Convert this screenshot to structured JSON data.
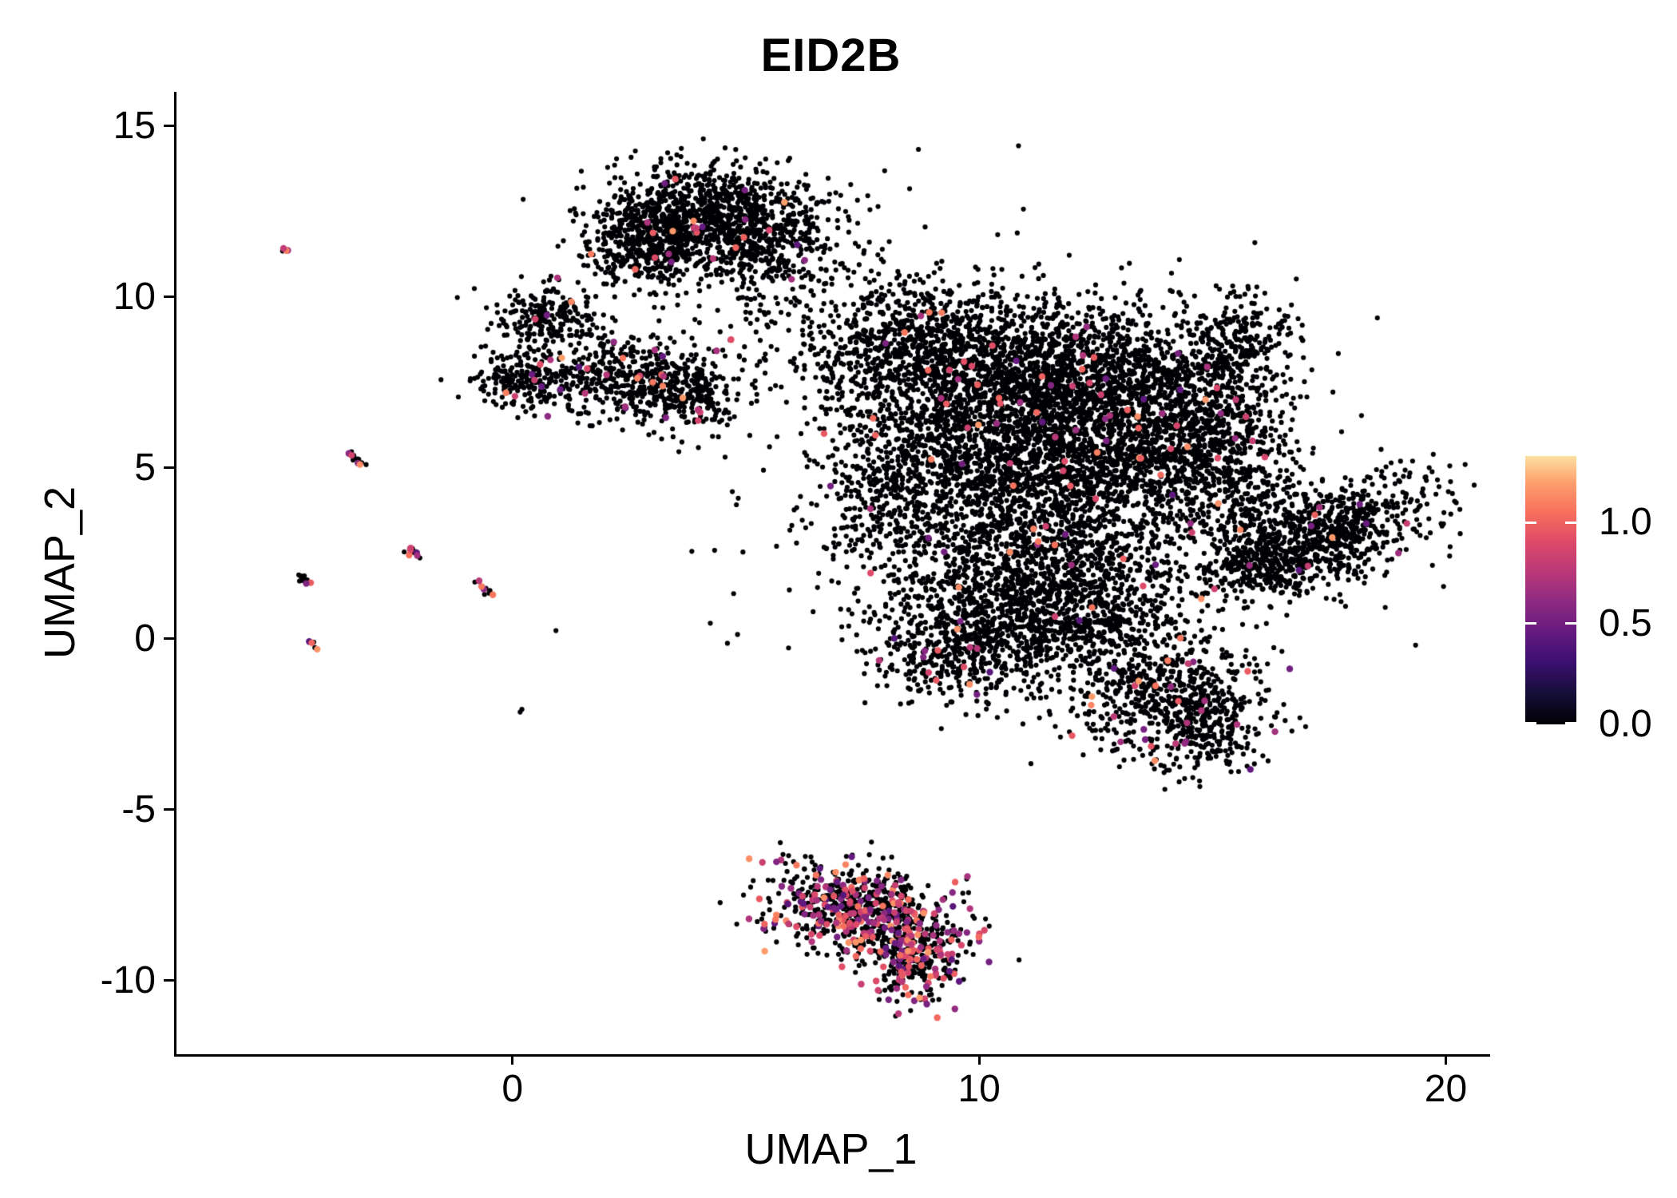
{
  "title": "EID2B",
  "axes": {
    "x_label": "UMAP_1",
    "y_label": "UMAP_2"
  },
  "legend": {
    "entries": [
      {
        "text": "1.0",
        "value": 1.0
      },
      {
        "text": "0.5",
        "value": 0.5
      },
      {
        "text": "0.0",
        "value": 0.0
      }
    ],
    "value_range": [
      0,
      1.33
    ]
  },
  "chart_data": {
    "type": "scatter",
    "title": "EID2B",
    "xlabel": "UMAP_1",
    "ylabel": "UMAP_2",
    "xlim": [
      -7.2,
      20.95
    ],
    "ylim": [
      -12.15,
      16.0
    ],
    "x_ticks": [
      0,
      10,
      20
    ],
    "y_ticks": [
      -10,
      -5,
      0,
      5,
      10,
      15
    ],
    "grid": false,
    "legend_position": "right",
    "colormap": "magma",
    "point_color_zero": "#000004",
    "colormap_stops": [
      [
        0.0,
        "#000004"
      ],
      [
        0.11,
        "#140e36"
      ],
      [
        0.23,
        "#3b0f70"
      ],
      [
        0.34,
        "#641a80"
      ],
      [
        0.45,
        "#8c2981"
      ],
      [
        0.56,
        "#b73779"
      ],
      [
        0.68,
        "#de4968"
      ],
      [
        0.79,
        "#f7705c"
      ],
      [
        0.9,
        "#fe9f6d"
      ],
      [
        1.0,
        "#fde0a1"
      ]
    ],
    "clusters": [
      {
        "cx": 4.0,
        "cy": 12.4,
        "sx": 1.15,
        "sy": 0.75,
        "n": 900,
        "cf": 0.02
      },
      {
        "cx": 2.9,
        "cy": 11.5,
        "sx": 0.7,
        "sy": 0.6,
        "n": 350,
        "cf": 0.02
      },
      {
        "cx": 5.3,
        "cy": 11.6,
        "sx": 0.8,
        "sy": 0.7,
        "n": 300,
        "cf": 0.01
      },
      {
        "cx": 5.0,
        "cy": 10.0,
        "sx": 1.2,
        "sy": 0.8,
        "n": 80,
        "cf": 0.01
      },
      {
        "cx": 6.6,
        "cy": 11.2,
        "sx": 0.9,
        "sy": 0.9,
        "n": 70,
        "cf": 0.0
      },
      {
        "cx": 0.75,
        "cy": 9.4,
        "sx": 0.55,
        "sy": 0.45,
        "n": 220,
        "cf": 0.02
      },
      {
        "cx": 0.55,
        "cy": 7.6,
        "sx": 0.7,
        "sy": 0.45,
        "n": 260,
        "cf": 0.04
      },
      {
        "cx": 3.0,
        "cy": 7.5,
        "sx": 0.85,
        "sy": 0.6,
        "n": 450,
        "cf": 0.03
      },
      {
        "cx": 1.8,
        "cy": 8.5,
        "sx": 0.6,
        "sy": 0.5,
        "n": 40,
        "cf": 0.0
      },
      {
        "cx": 3.9,
        "cy": 6.8,
        "sx": 0.5,
        "sy": 0.4,
        "n": 90,
        "cf": 0.0
      },
      {
        "cx": 8.7,
        "cy": 8.7,
        "sx": 1.3,
        "sy": 1.0,
        "n": 700,
        "cf": 0.015
      },
      {
        "cx": 10.6,
        "cy": 7.8,
        "sx": 1.5,
        "sy": 1.2,
        "n": 900,
        "cf": 0.015
      },
      {
        "cx": 12.6,
        "cy": 7.6,
        "sx": 1.3,
        "sy": 1.1,
        "n": 800,
        "cf": 0.015
      },
      {
        "cx": 9.6,
        "cy": 5.3,
        "sx": 1.3,
        "sy": 1.2,
        "n": 700,
        "cf": 0.015
      },
      {
        "cx": 11.6,
        "cy": 4.8,
        "sx": 1.5,
        "sy": 1.4,
        "n": 900,
        "cf": 0.015
      },
      {
        "cx": 13.6,
        "cy": 5.6,
        "sx": 1.2,
        "sy": 1.2,
        "n": 700,
        "cf": 0.015
      },
      {
        "cx": 14.9,
        "cy": 6.8,
        "sx": 0.8,
        "sy": 1.2,
        "n": 400,
        "cf": 0.01
      },
      {
        "cx": 15.4,
        "cy": 4.6,
        "sx": 0.7,
        "sy": 1.0,
        "n": 300,
        "cf": 0.01
      },
      {
        "cx": 15.5,
        "cy": 8.7,
        "sx": 0.6,
        "sy": 0.8,
        "n": 220,
        "cf": 0.01
      },
      {
        "cx": 10.2,
        "cy": 1.6,
        "sx": 1.4,
        "sy": 1.2,
        "n": 700,
        "cf": 0.02
      },
      {
        "cx": 12.3,
        "cy": 2.2,
        "sx": 1.2,
        "sy": 1.2,
        "n": 500,
        "cf": 0.02
      },
      {
        "cx": 9.4,
        "cy": -0.4,
        "sx": 0.9,
        "sy": 0.8,
        "n": 350,
        "cf": 0.03
      },
      {
        "cx": 11.3,
        "cy": 0.3,
        "sx": 0.9,
        "sy": 0.9,
        "n": 300,
        "cf": 0.02
      },
      {
        "cx": 13.9,
        "cy": -1.7,
        "sx": 1.0,
        "sy": 0.9,
        "n": 500,
        "cf": 0.03
      },
      {
        "cx": 14.9,
        "cy": -2.6,
        "sx": 0.6,
        "sy": 0.7,
        "n": 250,
        "cf": 0.03
      },
      {
        "cx": 13.0,
        "cy": 0.3,
        "sx": 1.2,
        "sy": 0.8,
        "n": 200,
        "cf": 0.02
      },
      {
        "cx": 11.5,
        "cy": 4.5,
        "sx": 3.2,
        "sy": 3.2,
        "n": 400,
        "cf": 0.01
      },
      {
        "cx": 7.8,
        "cy": 4.0,
        "sx": 0.8,
        "sy": 1.0,
        "n": 150,
        "cf": 0.02
      },
      {
        "cx": 8.0,
        "cy": 6.2,
        "sx": 0.9,
        "sy": 1.3,
        "n": 200,
        "cf": 0.015
      },
      {
        "cx": 17.4,
        "cy": 3.1,
        "sx": 1.25,
        "sy": 0.7,
        "n": 800,
        "cf": 0.015,
        "rot": 28
      },
      {
        "cx": 16.1,
        "cy": 2.1,
        "sx": 0.6,
        "sy": 0.5,
        "n": 200,
        "cf": 0.01
      },
      {
        "cx": 7.5,
        "cy": -7.9,
        "sx": 1.05,
        "sy": 0.65,
        "n": 700,
        "cf": 0.28,
        "rot": -18
      },
      {
        "cx": 8.6,
        "cy": -9.3,
        "sx": 0.55,
        "sy": 0.65,
        "n": 300,
        "cf": 0.3
      },
      {
        "cx": -4.85,
        "cy": 11.4,
        "sx": 0.07,
        "sy": 0.04,
        "n": 4,
        "cf": 0.8
      },
      {
        "cx": -3.35,
        "cy": 5.25,
        "sx": 0.17,
        "sy": 0.05,
        "n": 14,
        "cf": 0.15,
        "rot": -50
      },
      {
        "cx": -2.1,
        "cy": 2.55,
        "sx": 0.15,
        "sy": 0.05,
        "n": 12,
        "cf": 0.25,
        "rot": -50
      },
      {
        "cx": -4.5,
        "cy": 1.8,
        "sx": 0.15,
        "sy": 0.05,
        "n": 12,
        "cf": 0.1,
        "rot": -50
      },
      {
        "cx": -0.65,
        "cy": 1.5,
        "sx": 0.15,
        "sy": 0.05,
        "n": 12,
        "cf": 0.2,
        "rot": -50
      },
      {
        "cx": -4.3,
        "cy": -0.1,
        "sx": 0.09,
        "sy": 0.04,
        "n": 6,
        "cf": 0.3,
        "rot": -50
      },
      {
        "cx": 0.2,
        "cy": -2.1,
        "sx": 0.05,
        "sy": 0.03,
        "n": 2,
        "cf": 0.0
      }
    ]
  }
}
